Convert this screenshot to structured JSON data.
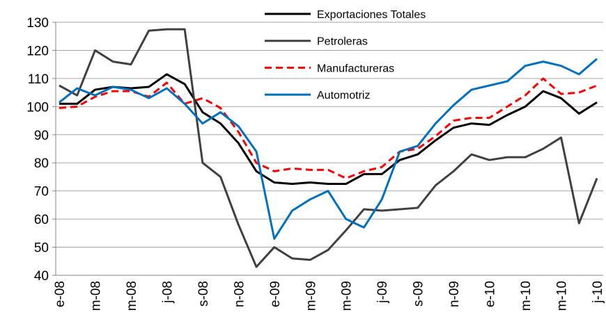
{
  "chart_data": {
    "type": "line",
    "categories": [
      "e-08",
      null,
      "m-08",
      null,
      "m-08",
      null,
      "j-08",
      null,
      "s-08",
      null,
      "n-08",
      null,
      "e-09",
      null,
      "m-09",
      null,
      "m-09",
      null,
      "j-09",
      null,
      "s-09",
      null,
      "n-09",
      null,
      "e-10",
      null,
      "m-10",
      null,
      "m-10",
      null,
      "j-10"
    ],
    "series": [
      {
        "name": "Exportaciones  Totales",
        "color": "#000000",
        "values": [
          101,
          101,
          106,
          107,
          106.5,
          107,
          111.5,
          108,
          98,
          94,
          87,
          77,
          73,
          72.5,
          73,
          72.5,
          72.5,
          76,
          76,
          81,
          83,
          88,
          92.5,
          94,
          93.5,
          97,
          100,
          105.5,
          103,
          97.5,
          101.5
        ]
      },
      {
        "name": "Petroleras",
        "color": "#404040",
        "values": [
          107.5,
          104,
          120,
          116,
          115,
          127,
          127.5,
          127.5,
          80,
          75,
          58,
          43,
          50,
          46,
          45.5,
          49,
          56,
          63.5,
          63,
          63.5,
          64,
          72,
          77,
          83,
          81,
          82,
          82,
          85,
          89,
          58.5,
          74.5
        ]
      },
      {
        "name": "Manufactureras",
        "color": "#ff0000",
        "dashed": true,
        "values": [
          99.5,
          100,
          103.5,
          105.5,
          105.5,
          103.5,
          108.5,
          101,
          103,
          99.5,
          91,
          80,
          77,
          78,
          77.5,
          77.5,
          74.5,
          77,
          78.5,
          84,
          85,
          89.5,
          95,
          96,
          96,
          100,
          104,
          110,
          104.5,
          105,
          107.5
        ]
      },
      {
        "name": "Automotriz",
        "color": "#0070c0",
        "values": [
          101.5,
          106.5,
          104,
          107,
          106,
          103,
          106.5,
          101,
          94,
          98,
          93,
          84,
          53,
          63,
          67,
          70,
          60,
          57,
          67,
          84,
          86,
          94,
          100.5,
          106,
          107.5,
          109,
          114.5,
          116,
          114.5,
          111.5,
          117
        ]
      }
    ],
    "ylim": [
      40,
      130
    ],
    "yticks": [
      40,
      50,
      60,
      70,
      80,
      90,
      100,
      110,
      120,
      130
    ],
    "grid": true
  }
}
